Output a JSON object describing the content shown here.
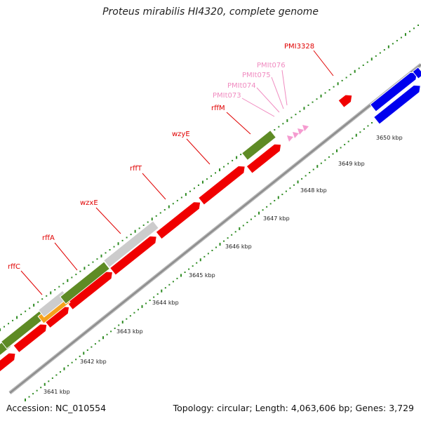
{
  "title": "Proteus mirabilis HI4320, complete genome",
  "footer": {
    "accession": "Accession: NC_010554",
    "summary": "Topology: circular; Length: 4,063,606 bp; Genes: 3,729"
  },
  "colors": {
    "background": "#ffffff",
    "backbone": "#8c8c8c",
    "tick_dot": "#2e8b22",
    "cds_red": "#f00000",
    "olive": "#5e8b25",
    "grey_feature": "#cccccc",
    "orange_feature": "#f5a21c",
    "blue_feature": "#0000ee",
    "trna_pink": "#f59bd0",
    "label_red": "#e00000",
    "label_pink": "#f08bc0"
  },
  "kbp_labels": [
    "3641 kbp",
    "3642 kbp",
    "3643 kbp",
    "3644 kbp",
    "3645 kbp",
    "3646 kbp",
    "3647 kbp",
    "3648 kbp",
    "3649 kbp",
    "3650 kbp"
  ],
  "gene_labels": [
    {
      "text": "rffC",
      "kind": "red"
    },
    {
      "text": "rffA",
      "kind": "red"
    },
    {
      "text": "wzxE",
      "kind": "red"
    },
    {
      "text": "rffT",
      "kind": "red"
    },
    {
      "text": "wzyE",
      "kind": "red"
    },
    {
      "text": "rffM",
      "kind": "red"
    },
    {
      "text": "PMIt073",
      "kind": "pink"
    },
    {
      "text": "PMIt074",
      "kind": "pink"
    },
    {
      "text": "PMIt075",
      "kind": "pink"
    },
    {
      "text": "PMIt076",
      "kind": "pink"
    },
    {
      "text": "PMI3328",
      "kind": "red"
    }
  ]
}
